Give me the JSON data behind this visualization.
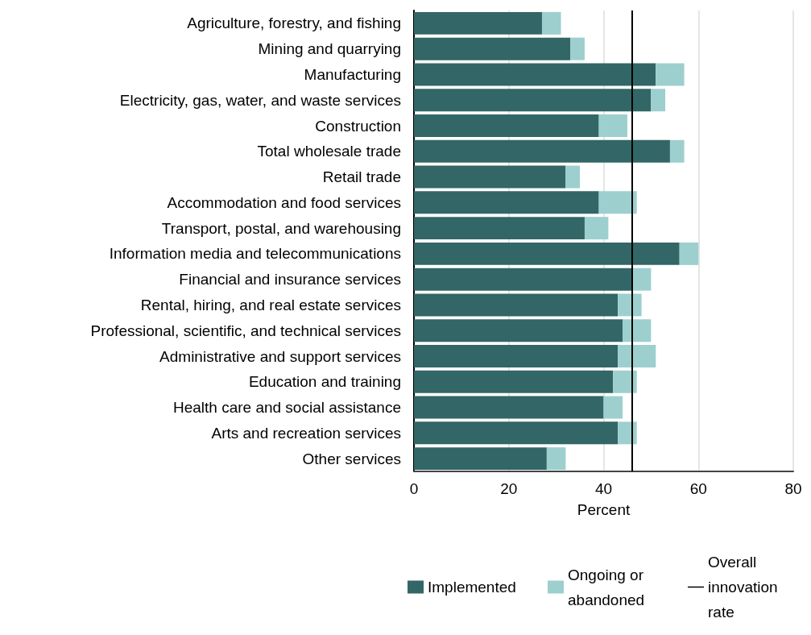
{
  "chart_data": {
    "type": "bar",
    "orientation": "horizontal",
    "stacked": true,
    "xlabel": "Percent",
    "categories": [
      "Agriculture, forestry, and fishing",
      "Mining and quarrying",
      "Manufacturing",
      "Electricity, gas, water, and waste services",
      "Construction",
      "Total wholesale trade",
      "Retail trade",
      "Accommodation and food services",
      "Transport, postal, and warehousing",
      "Information media and telecommunications",
      "Financial and insurance services",
      "Rental, hiring, and real estate services",
      "Professional, scientific, and technical services",
      "Administrative and support services",
      "Education and training",
      "Health care and social assistance",
      "Arts and recreation services",
      "Other services"
    ],
    "series": [
      {
        "name": "Implemented",
        "color": "#336666",
        "values": [
          27,
          33,
          51,
          50,
          39,
          54,
          32,
          39,
          36,
          56,
          46,
          43,
          44,
          43,
          42,
          40,
          43,
          28
        ]
      },
      {
        "name": "Ongoing or abandoned",
        "color": "#9dcfcf",
        "values": [
          4,
          3,
          6,
          3,
          6,
          3,
          3,
          8,
          5,
          4,
          4,
          5,
          6,
          8,
          5,
          4,
          4,
          4
        ]
      }
    ],
    "xlim": [
      0,
      80
    ],
    "xticks": [
      0,
      20,
      40,
      60,
      80
    ],
    "grid": "x",
    "legend": "bottom",
    "ref_lines": [
      {
        "axis": "x",
        "value": 46,
        "label": "Overall innovation rate",
        "color": "#000000",
        "line_style": "solid"
      }
    ]
  }
}
